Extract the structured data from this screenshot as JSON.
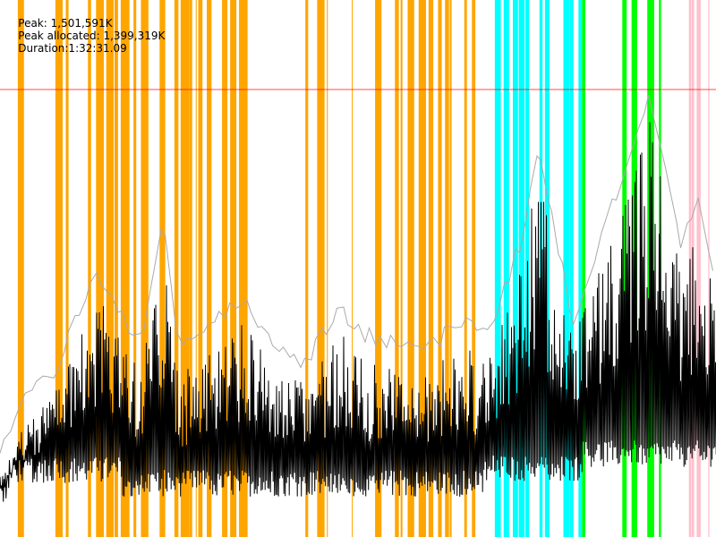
{
  "header": {
    "peak": "Peak: 1,501,591K",
    "peak_allocated": "Peak allocated: 1,399,319K",
    "duration": "Duration:1:32:31.09"
  },
  "colors": {
    "phase_1": "#ffa500",
    "phase_2": "#00ffff",
    "phase_3": "#00ff00",
    "phase_4": "#ffc0cb",
    "peak_line": "#ff0000",
    "committed": "#aaaaaa",
    "used": "#000000"
  },
  "chart_data": {
    "type": "line",
    "grid": false,
    "legend": "none",
    "x_unit": "minutes",
    "xlim": [
      0,
      92.5
    ],
    "y_unit": "K",
    "peak_line": 1501591,
    "phases": [
      {
        "color": "#ffa500",
        "range": [
          2.3,
          62.4
        ]
      },
      {
        "color": "#00ffff",
        "range": [
          62.4,
          75.2
        ]
      },
      {
        "color": "#00ff00",
        "range": [
          75.2,
          89.0
        ]
      },
      {
        "color": "#ffc0cb",
        "range": [
          89.0,
          92.5
        ]
      }
    ],
    "series": [
      {
        "x": [
          0,
          3.5,
          6.9,
          12.7,
          15.6,
          18.5,
          21.2,
          23.1,
          31.2,
          34.7,
          39.3,
          43.9,
          47.4,
          54.3,
          60.1,
          63.0,
          67.1,
          69.4,
          74.0,
          79.8,
          83.8,
          87.9,
          90.2,
          92.5
        ],
        "peak_values": [
          210000,
          390000,
          480000,
          811000,
          661000,
          601000,
          991000,
          541000,
          721000,
          601000,
          511000,
          691000,
          601000,
          541000,
          661000,
          601000,
          901000,
          1231000,
          661000,
          1081000,
          1411000,
          901000,
          1051000,
          781000
        ]
      }
    ]
  }
}
